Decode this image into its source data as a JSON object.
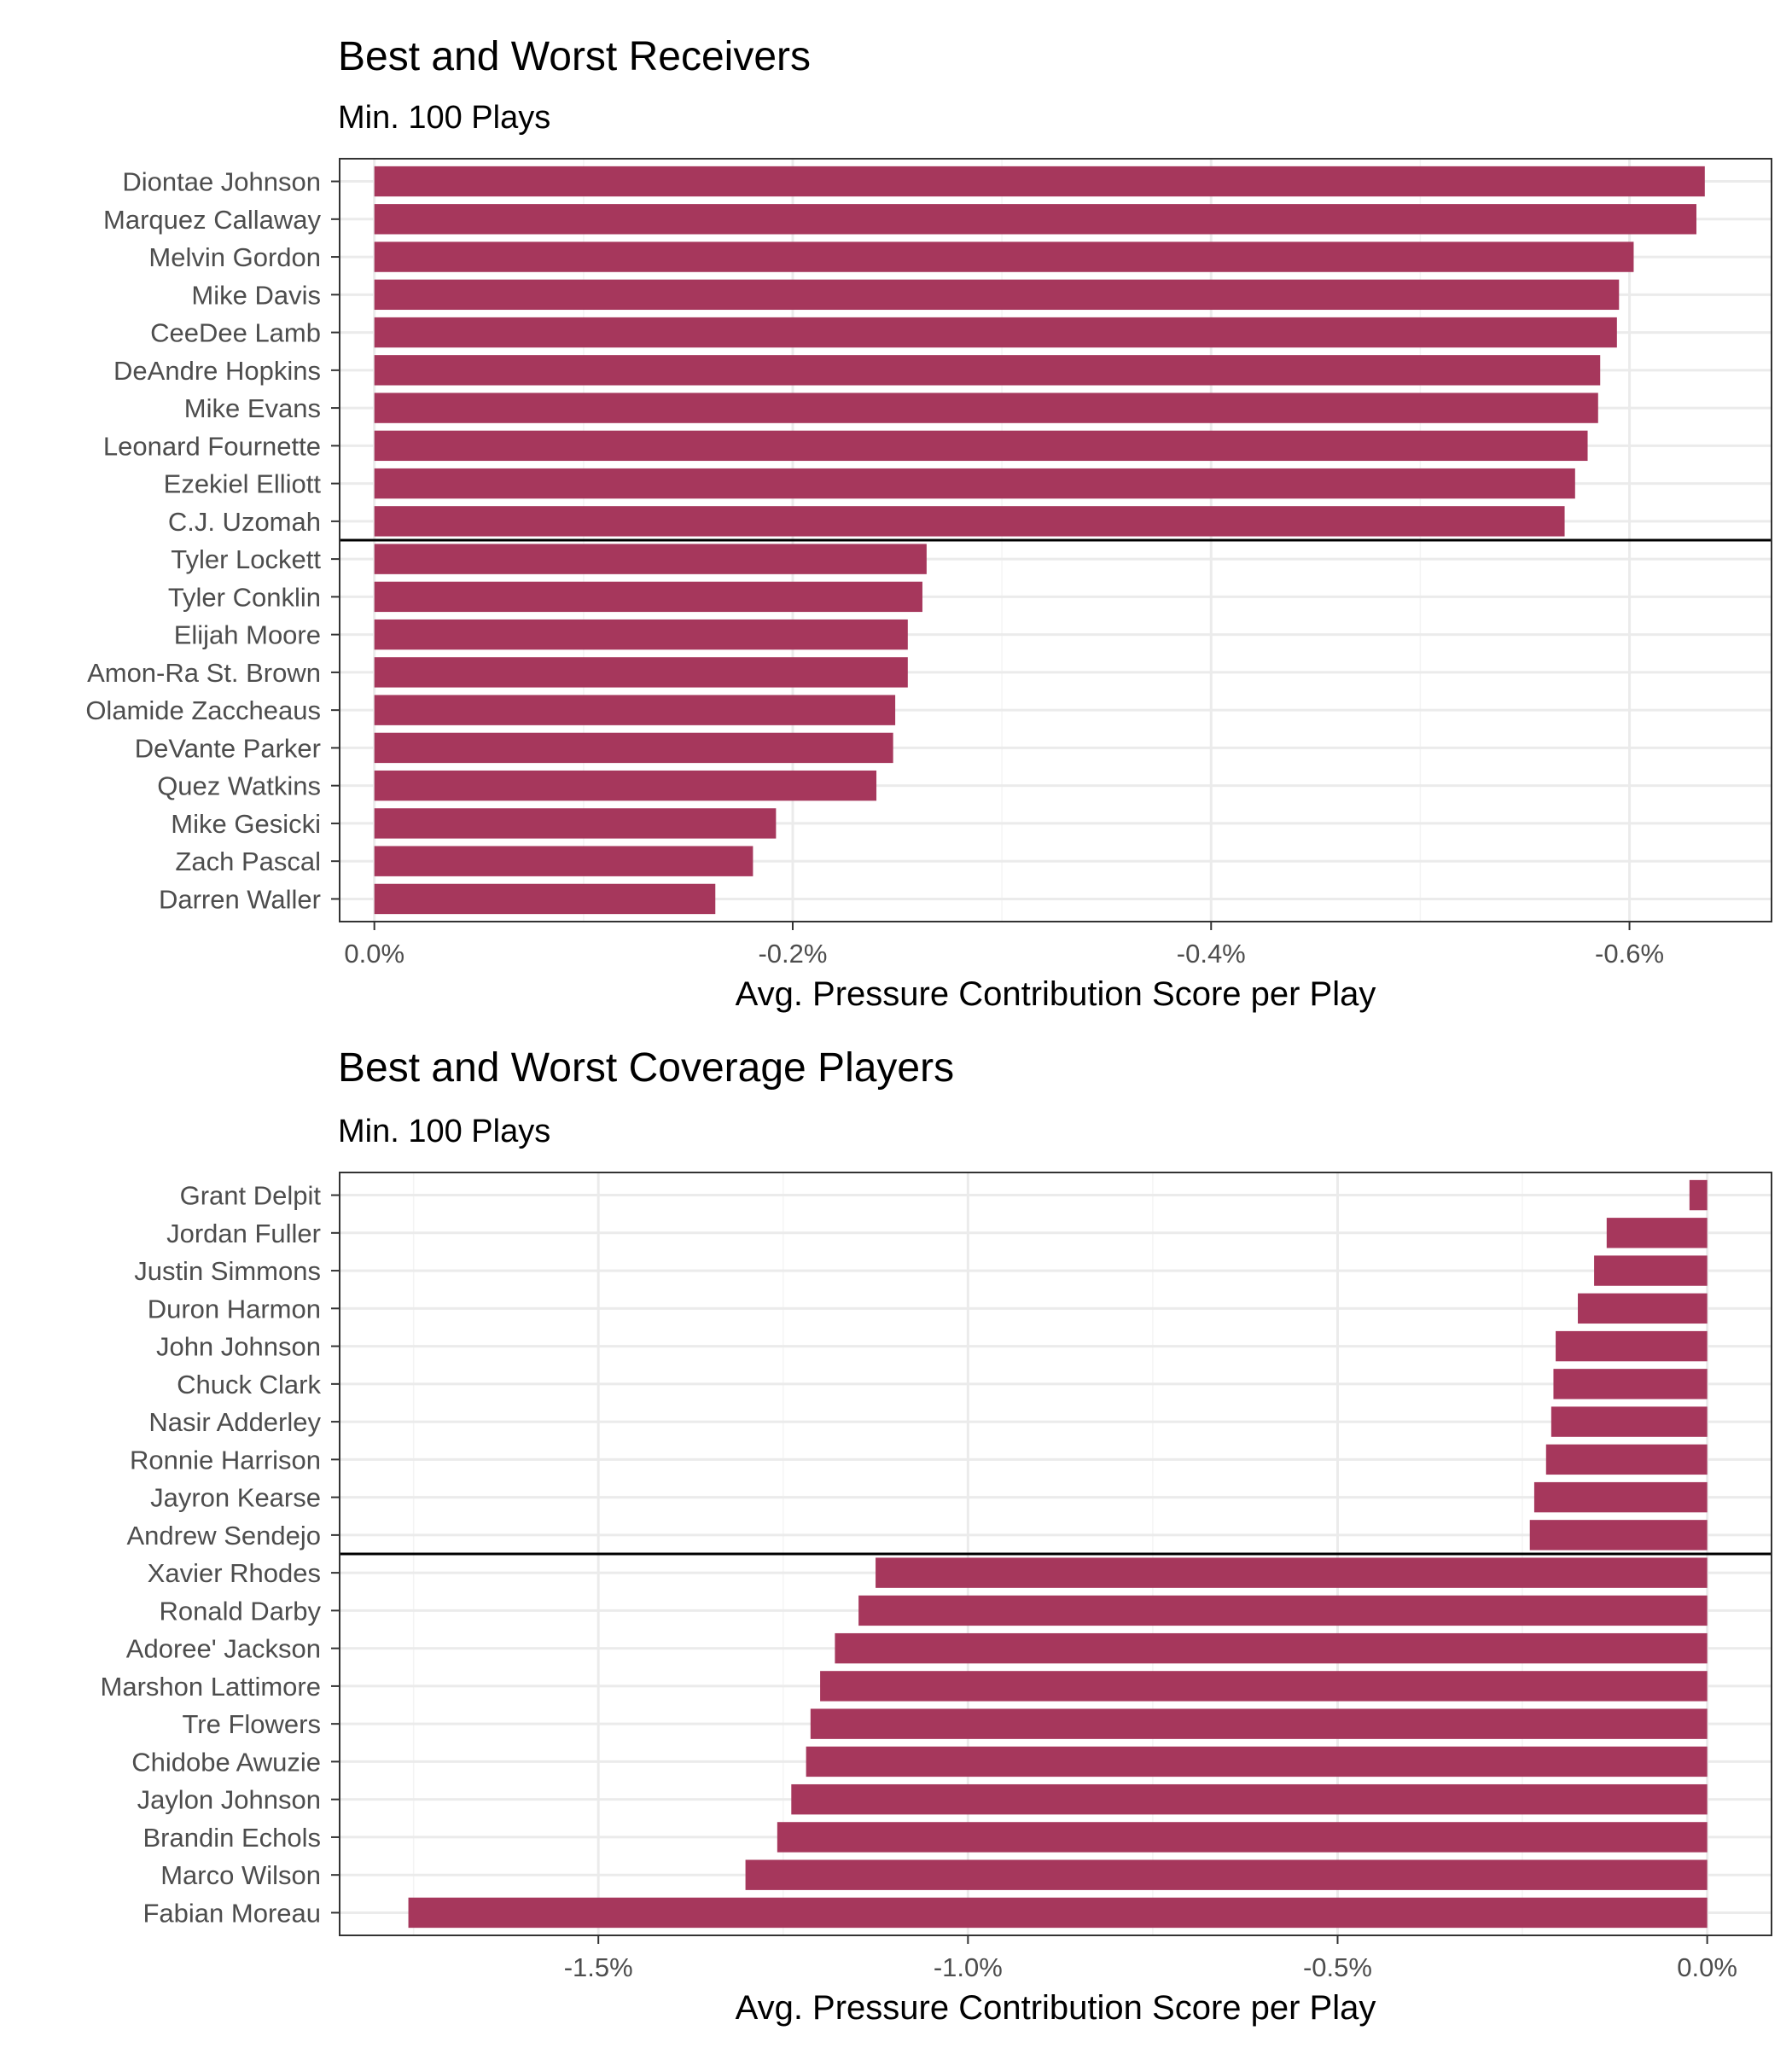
{
  "colors": {
    "bar": "#a6375c",
    "grid_major": "#ebebeb",
    "grid_minor": "#f4f4f4",
    "frame": "#333333",
    "separator": "#000000"
  },
  "chart_data": [
    {
      "type": "bar",
      "orientation": "horizontal",
      "title": "Best and Worst Receivers",
      "subtitle": "Min. 100 Plays",
      "xlabel": "Avg. Pressure Contribution Score per Play",
      "x_reversed": true,
      "xlim": [
        0.0166,
        -0.6679
      ],
      "xticks": [
        0.0,
        -0.2,
        -0.4,
        -0.6
      ],
      "xtick_labels": [
        "0.0%",
        "-0.2%",
        "-0.4%",
        "-0.6%"
      ],
      "xminor": [
        -0.1,
        -0.3,
        -0.5
      ],
      "grid": true,
      "separator_after": 10,
      "categories": [
        "Diontae Johnson",
        "Marquez Callaway",
        "Melvin Gordon",
        "Mike Davis",
        "CeeDee Lamb",
        "DeAndre Hopkins",
        "Mike Evans",
        "Leonard Fournette",
        "Ezekiel Elliott",
        "C.J. Uzomah",
        "Tyler Lockett",
        "Tyler Conklin",
        "Elijah Moore",
        "Amon-Ra St. Brown",
        "Olamide Zaccheaus",
        "DeVante Parker",
        "Quez Watkins",
        "Mike Gesicki",
        "Zach Pascal",
        "Darren Waller"
      ],
      "values": [
        -0.636,
        -0.632,
        -0.602,
        -0.595,
        -0.594,
        -0.586,
        -0.585,
        -0.58,
        -0.574,
        -0.569,
        -0.264,
        -0.262,
        -0.255,
        -0.255,
        -0.249,
        -0.248,
        -0.24,
        -0.192,
        -0.181,
        -0.163
      ]
    },
    {
      "type": "bar",
      "orientation": "horizontal",
      "title": "Best and Worst Coverage Players",
      "subtitle": "Min. 100 Plays",
      "xlabel": "Avg. Pressure Contribution Score per Play",
      "x_reversed": false,
      "xlim": [
        -1.85,
        0.087
      ],
      "xticks": [
        -1.5,
        -1.0,
        -0.5,
        0.0
      ],
      "xtick_labels": [
        "-1.5%",
        "-1.0%",
        "-0.5%",
        "0.0%"
      ],
      "xminor": [
        -1.75,
        -1.25,
        -0.75,
        -0.25
      ],
      "grid": true,
      "separator_after": 10,
      "categories": [
        "Grant Delpit",
        "Jordan Fuller",
        "Justin Simmons",
        "Duron Harmon",
        "John Johnson",
        "Chuck Clark",
        "Nasir Adderley",
        "Ronnie Harrison",
        "Jayron Kearse",
        "Andrew Sendejo",
        "Xavier Rhodes",
        "Ronald Darby",
        "Adoree' Jackson",
        "Marshon Lattimore",
        "Tre Flowers",
        "Chidobe Awuzie",
        "Jaylon Johnson",
        "Brandin Echols",
        "Marco Wilson",
        "Fabian Moreau"
      ],
      "values": [
        -0.024,
        -0.136,
        -0.153,
        -0.175,
        -0.205,
        -0.208,
        -0.211,
        -0.218,
        -0.234,
        -0.24,
        -1.125,
        -1.148,
        -1.18,
        -1.2,
        -1.213,
        -1.219,
        -1.239,
        -1.258,
        -1.301,
        -1.757
      ]
    }
  ]
}
